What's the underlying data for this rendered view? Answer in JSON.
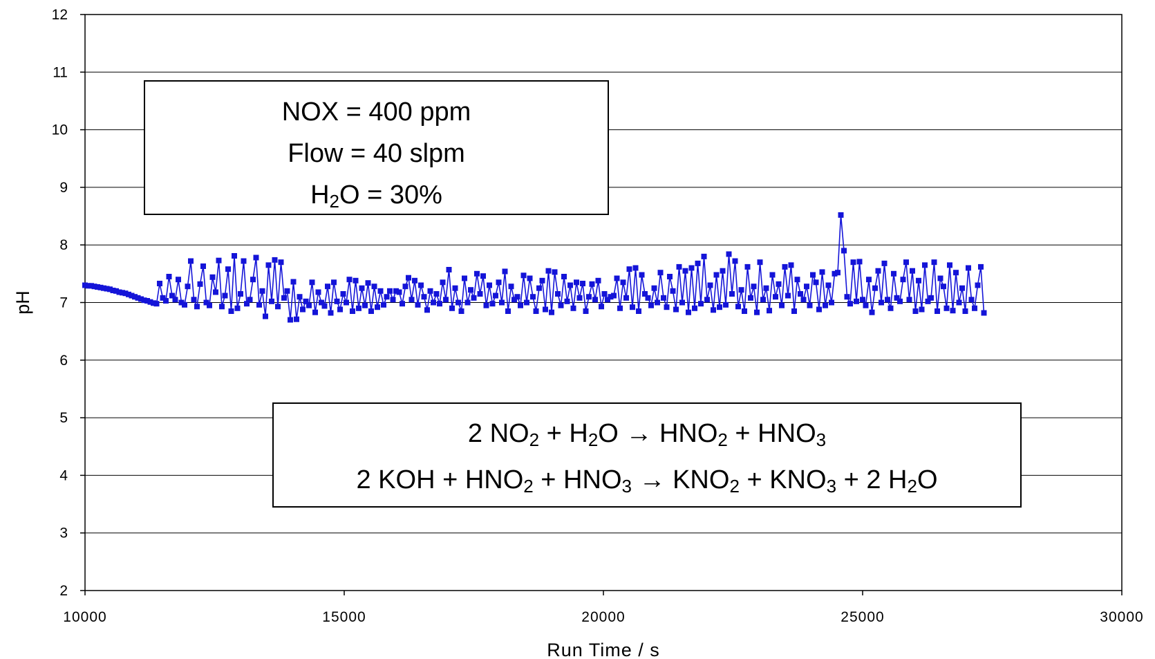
{
  "chart_data": {
    "type": "line",
    "xlabel": "Run Time / s",
    "ylabel": "pH",
    "xlim": [
      10000,
      30000
    ],
    "ylim": [
      2,
      12
    ],
    "x_ticks": [
      "10000",
      "15000",
      "20000",
      "25000",
      "30000"
    ],
    "y_ticks": [
      "2",
      "3",
      "4",
      "5",
      "6",
      "7",
      "8",
      "9",
      "10",
      "11",
      "12"
    ],
    "grid": "horizontal major gridlines",
    "series": [
      {
        "color": "#1414d8",
        "marker": "square",
        "x_step": 60,
        "x": [
          10000,
          10060,
          10120,
          10180,
          10240,
          10300,
          10360,
          10420,
          10480,
          10540,
          10600,
          10660,
          10720,
          10780,
          10840,
          10900,
          10960,
          11020,
          11080,
          11140,
          11200,
          11260,
          11320,
          11380,
          11440,
          11500
        ],
        "y": [
          7.3,
          7.29,
          7.29,
          7.28,
          7.27,
          7.26,
          7.25,
          7.24,
          7.23,
          7.21,
          7.2,
          7.18,
          7.17,
          7.16,
          7.14,
          7.12,
          7.1,
          7.08,
          7.06,
          7.04,
          7.03,
          7.01,
          6.99,
          6.98,
          7.33,
          7.08
        ],
        "y_after_11500": [
          7.03,
          7.45,
          7.12,
          7.05,
          7.4,
          7.0,
          6.96,
          7.28,
          7.72,
          7.05,
          6.93,
          7.32,
          7.63,
          7.0,
          6.95,
          7.44,
          7.18,
          7.73,
          6.93,
          7.12,
          7.58,
          6.85,
          7.81,
          6.9,
          7.15,
          7.72,
          6.98,
          7.05,
          7.4,
          7.78,
          6.96,
          7.2,
          6.76,
          7.65,
          7.02,
          7.74,
          6.93,
          7.7,
          7.08,
          7.2,
          6.7,
          7.36,
          6.71,
          7.1,
          6.88,
          7.02,
          6.95,
          7.35,
          6.83,
          7.18,
          7.0,
          6.94,
          7.28,
          6.82,
          7.35,
          7.02,
          6.88,
          7.15,
          7.0,
          7.4,
          6.85,
          7.38,
          6.9,
          7.25,
          6.95,
          7.34,
          6.85,
          7.28,
          6.92,
          7.2,
          6.96,
          7.1,
          7.2,
          7.05,
          7.2,
          7.18,
          6.98,
          7.28,
          7.43,
          7.05,
          7.38,
          6.96,
          7.3,
          7.1,
          6.87,
          7.2,
          7.0,
          7.15,
          6.98,
          7.35,
          7.05,
          7.57,
          6.9,
          7.25,
          7.0,
          6.85,
          7.42,
          7.0,
          7.22,
          7.08,
          7.5,
          7.15,
          7.46,
          6.95,
          7.3,
          6.98,
          7.12,
          7.35,
          7.0,
          7.54,
          6.85,
          7.28,
          7.05,
          7.1,
          6.95,
          7.47,
          7.0,
          7.42,
          7.1,
          6.85,
          7.25,
          7.38,
          6.88,
          7.55,
          6.83,
          7.53,
          7.15,
          6.95,
          7.45,
          7.02,
          7.3,
          6.9,
          7.35,
          7.08,
          7.33,
          6.85,
          7.1,
          7.32,
          7.05,
          7.38,
          6.93,
          7.15,
          7.05,
          7.1,
          7.12,
          7.42,
          6.9,
          7.35,
          7.08,
          7.58,
          6.92,
          7.6,
          6.85,
          7.48,
          7.15,
          7.08,
          6.95,
          7.25,
          7.0,
          7.52,
          7.08,
          6.92,
          7.45,
          7.2,
          6.88,
          7.62,
          7.0,
          7.55,
          6.83,
          7.6,
          6.9,
          7.68,
          6.98,
          7.8,
          7.05,
          7.3,
          6.87,
          7.48,
          6.92,
          7.55,
          6.96,
          7.84,
          7.15,
          7.72,
          6.93,
          7.22,
          6.85,
          7.62,
          7.08,
          7.28,
          6.83,
          7.7,
          7.05,
          7.25,
          6.86,
          7.48,
          7.1,
          7.32,
          6.95,
          7.62,
          7.12,
          7.65,
          6.85,
          7.4,
          7.15,
          7.05,
          7.28,
          6.95,
          7.48,
          7.35,
          6.88,
          7.53,
          6.95,
          7.3,
          7.0,
          7.5,
          7.52,
          8.52,
          7.9,
          7.1,
          6.98,
          7.7,
          7.02,
          7.71,
          7.05,
          6.95,
          7.4,
          6.83,
          7.25,
          7.55,
          7.0,
          7.68,
          7.05,
          6.9,
          7.5,
          7.08,
          7.02,
          7.4,
          7.7,
          7.05,
          7.55,
          6.85,
          7.38,
          6.88,
          7.65,
          7.02,
          7.08,
          7.7,
          6.85,
          7.42,
          7.28,
          6.9,
          7.65,
          6.86,
          7.52,
          7.0,
          7.25,
          6.85,
          7.6,
          7.05,
          6.9,
          7.3,
          7.62,
          6.82
        ]
      }
    ]
  },
  "annotations": {
    "conditions": {
      "nox": "NOX = 400 ppm",
      "flow": "Flow = 40 slpm",
      "h2o_prefix": "H",
      "h2o_sub": "2",
      "h2o_suffix": "O = 30%"
    },
    "reactions": {
      "line1": [
        {
          "t": "2 NO"
        },
        {
          "s": "2"
        },
        {
          "t": " + H"
        },
        {
          "s": "2"
        },
        {
          "t": "O → HNO"
        },
        {
          "s": "2"
        },
        {
          "t": " + HNO"
        },
        {
          "s": "3"
        }
      ],
      "line2": [
        {
          "t": "2 KOH + HNO"
        },
        {
          "s": "2"
        },
        {
          "t": " + HNO"
        },
        {
          "s": "3"
        },
        {
          "t": " → KNO"
        },
        {
          "s": "2"
        },
        {
          "t": " + KNO"
        },
        {
          "s": "3"
        },
        {
          "t": " + 2 H"
        },
        {
          "s": "2"
        },
        {
          "t": "O"
        }
      ]
    }
  }
}
